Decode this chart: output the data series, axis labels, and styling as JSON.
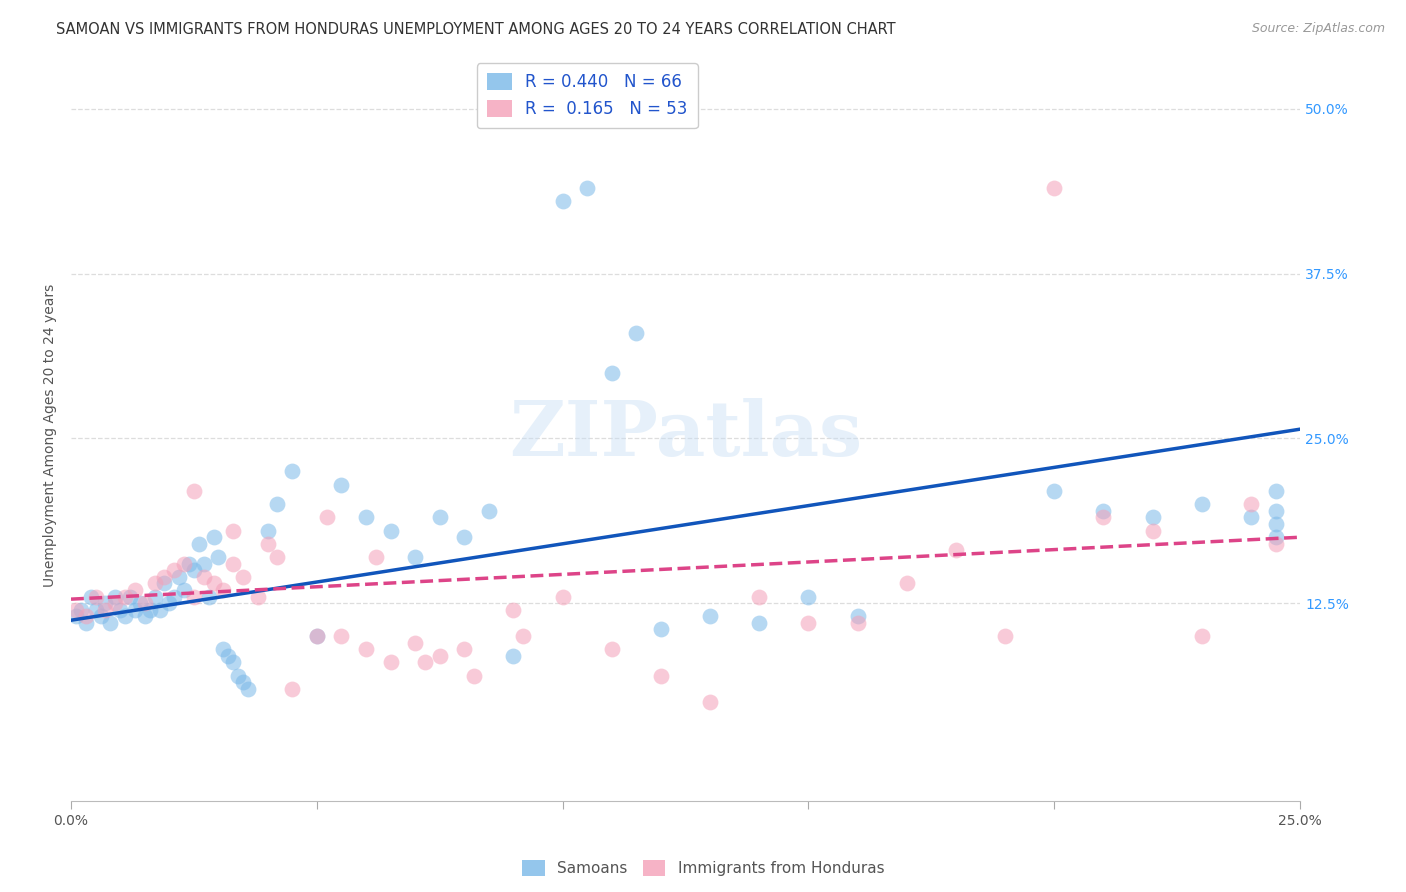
{
  "title": "SAMOAN VS IMMIGRANTS FROM HONDURAS UNEMPLOYMENT AMONG AGES 20 TO 24 YEARS CORRELATION CHART",
  "source": "Source: ZipAtlas.com",
  "ylabel_label": "Unemployment Among Ages 20 to 24 years",
  "xlim": [
    0.0,
    0.25
  ],
  "ylim": [
    -0.025,
    0.53
  ],
  "blue_color": "#7ab8e8",
  "pink_color": "#f4a0b8",
  "blue_line_color": "#1155bb",
  "pink_line_color": "#dd4488",
  "blue_trend_x0": 0.0,
  "blue_trend_x1": 0.25,
  "blue_trend_y0": 0.112,
  "blue_trend_y1": 0.257,
  "pink_trend_x0": 0.0,
  "pink_trend_x1": 0.25,
  "pink_trend_y0": 0.128,
  "pink_trend_y1": 0.175,
  "legend_label_blue": "R = 0.440   N = 66",
  "legend_label_pink": "R =  0.165   N = 53",
  "watermark": "ZIPatlas",
  "samoans_x": [
    0.001,
    0.002,
    0.003,
    0.004,
    0.005,
    0.006,
    0.007,
    0.008,
    0.009,
    0.01,
    0.011,
    0.012,
    0.013,
    0.014,
    0.015,
    0.016,
    0.017,
    0.018,
    0.019,
    0.02,
    0.021,
    0.022,
    0.023,
    0.024,
    0.025,
    0.026,
    0.027,
    0.028,
    0.029,
    0.03,
    0.031,
    0.032,
    0.033,
    0.034,
    0.035,
    0.036,
    0.04,
    0.042,
    0.045,
    0.05,
    0.055,
    0.06,
    0.065,
    0.07,
    0.075,
    0.08,
    0.085,
    0.09,
    0.1,
    0.105,
    0.11,
    0.115,
    0.12,
    0.13,
    0.14,
    0.15,
    0.16,
    0.2,
    0.21,
    0.22,
    0.23,
    0.24,
    0.245,
    0.245,
    0.245,
    0.245
  ],
  "samoans_y": [
    0.115,
    0.12,
    0.11,
    0.13,
    0.12,
    0.115,
    0.125,
    0.11,
    0.13,
    0.12,
    0.115,
    0.13,
    0.12,
    0.125,
    0.115,
    0.12,
    0.13,
    0.12,
    0.14,
    0.125,
    0.13,
    0.145,
    0.135,
    0.155,
    0.15,
    0.17,
    0.155,
    0.13,
    0.175,
    0.16,
    0.09,
    0.085,
    0.08,
    0.07,
    0.065,
    0.06,
    0.18,
    0.2,
    0.225,
    0.1,
    0.215,
    0.19,
    0.18,
    0.16,
    0.19,
    0.175,
    0.195,
    0.085,
    0.43,
    0.44,
    0.3,
    0.33,
    0.105,
    0.115,
    0.11,
    0.13,
    0.115,
    0.21,
    0.195,
    0.19,
    0.2,
    0.19,
    0.21,
    0.195,
    0.185,
    0.175
  ],
  "honduras_x": [
    0.001,
    0.003,
    0.005,
    0.007,
    0.009,
    0.011,
    0.013,
    0.015,
    0.017,
    0.019,
    0.021,
    0.023,
    0.025,
    0.027,
    0.029,
    0.031,
    0.033,
    0.035,
    0.038,
    0.04,
    0.045,
    0.05,
    0.055,
    0.06,
    0.065,
    0.07,
    0.075,
    0.08,
    0.09,
    0.1,
    0.11,
    0.12,
    0.13,
    0.14,
    0.15,
    0.16,
    0.17,
    0.18,
    0.19,
    0.2,
    0.21,
    0.22,
    0.23,
    0.24,
    0.245,
    0.025,
    0.033,
    0.042,
    0.052,
    0.062,
    0.072,
    0.082,
    0.092
  ],
  "honduras_y": [
    0.12,
    0.115,
    0.13,
    0.12,
    0.125,
    0.13,
    0.135,
    0.125,
    0.14,
    0.145,
    0.15,
    0.155,
    0.13,
    0.145,
    0.14,
    0.135,
    0.155,
    0.145,
    0.13,
    0.17,
    0.06,
    0.1,
    0.1,
    0.09,
    0.08,
    0.095,
    0.085,
    0.09,
    0.12,
    0.13,
    0.09,
    0.07,
    0.05,
    0.13,
    0.11,
    0.11,
    0.14,
    0.165,
    0.1,
    0.44,
    0.19,
    0.18,
    0.1,
    0.2,
    0.17,
    0.21,
    0.18,
    0.16,
    0.19,
    0.16,
    0.08,
    0.07,
    0.1
  ],
  "grid_color": "#dddddd",
  "background_color": "#ffffff",
  "title_fontsize": 10.5,
  "source_fontsize": 9,
  "label_fontsize": 10,
  "tick_fontsize": 10
}
